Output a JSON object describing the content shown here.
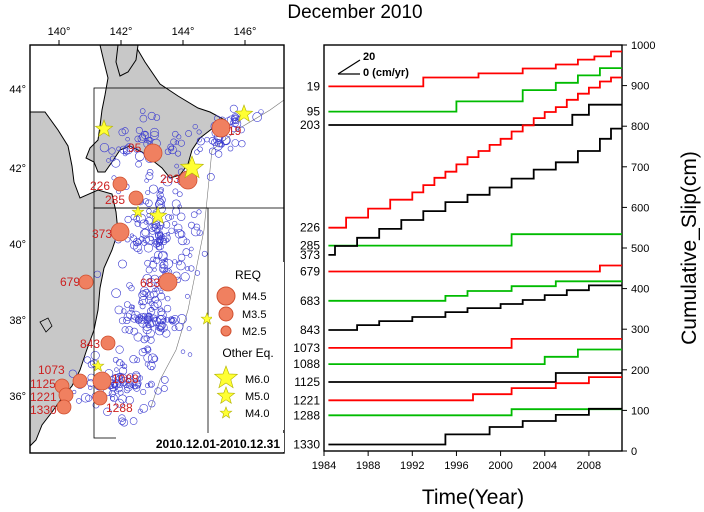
{
  "title": "December 2010",
  "map": {
    "lon_ticks": [
      "140°",
      "142°",
      "144°",
      "146°"
    ],
    "lat_ticks": [
      "44°",
      "42°",
      "40°",
      "38°",
      "36°"
    ],
    "date_range": "2010.12.01-2010.12.31",
    "legend": {
      "req_title": "REQ",
      "req_items": [
        "M4.5",
        "M3.5",
        "M2.5"
      ],
      "other_title": "Other Eq.",
      "other_items": [
        "M6.0",
        "M5.0",
        "M4.0"
      ]
    },
    "req_events": [
      {
        "id": "19",
        "size": "M4.5"
      },
      {
        "id": "95",
        "size": "M4.5"
      },
      {
        "id": "203",
        "size": "M4.5"
      },
      {
        "id": "226",
        "size": "M3.5"
      },
      {
        "id": "285",
        "size": "M3.5"
      },
      {
        "id": "373",
        "size": "M4.5"
      },
      {
        "id": "679",
        "size": "M3.5"
      },
      {
        "id": "683",
        "size": "M4.5"
      },
      {
        "id": "843",
        "size": "M3.5"
      },
      {
        "id": "1073",
        "size": "M3.5"
      },
      {
        "id": "1088",
        "size": "M4.5"
      },
      {
        "id": "1125",
        "size": "M3.5"
      },
      {
        "id": "1221",
        "size": "M3.5"
      },
      {
        "id": "1288",
        "size": "M3.5"
      },
      {
        "id": "1330",
        "size": "M3.5"
      }
    ],
    "other_eq_sizes": [
      "M5.0",
      "M5.0",
      "M6.0",
      "M4.0",
      "M5.0",
      "M4.0",
      "M4.0"
    ],
    "colors": {
      "land": "#c8c8c8",
      "req_fill": "#f08060",
      "req_stroke": "#d05030",
      "other_eq": "#ffff33",
      "seismicity": "#3a3ad0",
      "labels": "#cc2020"
    }
  },
  "chart_data": {
    "type": "line",
    "title": "December 2010",
    "xlabel": "Time(Year)",
    "ylabel": "Cumulative_Slip(cm)",
    "xlim": [
      1984,
      2011
    ],
    "ylim": [
      0,
      1000
    ],
    "xticks": [
      "1984",
      "1988",
      "1992",
      "1996",
      "2000",
      "2004",
      "2008"
    ],
    "yticks": [
      "0",
      "100",
      "200",
      "300",
      "400",
      "500",
      "600",
      "700",
      "800",
      "900",
      "1000"
    ],
    "scale_bar": {
      "value": "20",
      "unit_label": "0 (cm/yr)"
    },
    "series": [
      {
        "name": "19",
        "color": "#ff0000",
        "base": 898,
        "steps": [
          [
            1993,
            22
          ],
          [
            1998,
            10
          ],
          [
            2002,
            12
          ],
          [
            2005,
            10
          ],
          [
            2007,
            12
          ],
          [
            2008.5,
            8
          ],
          [
            2010,
            12
          ]
        ]
      },
      {
        "name": "95",
        "color": "#00bb00",
        "base": 836,
        "steps": [
          [
            1996,
            25
          ],
          [
            2002,
            28
          ],
          [
            2005,
            18
          ],
          [
            2007,
            18
          ],
          [
            2009,
            18
          ]
        ]
      },
      {
        "name": "203",
        "color": "#000000",
        "base": 803,
        "steps": [
          [
            2006.5,
            25
          ],
          [
            2008,
            25
          ]
        ]
      },
      {
        "name": "226",
        "color": "#ff0000",
        "base": 550,
        "steps": [
          [
            1986,
            25
          ],
          [
            1988,
            22
          ],
          [
            1990,
            22
          ],
          [
            1992,
            18
          ],
          [
            1993,
            18
          ],
          [
            1994,
            18
          ],
          [
            1995,
            15
          ],
          [
            1996,
            18
          ],
          [
            1997,
            18
          ],
          [
            1998,
            15
          ],
          [
            1999,
            15
          ],
          [
            2000,
            15
          ],
          [
            2001,
            18
          ],
          [
            2002,
            15
          ],
          [
            2003,
            18
          ],
          [
            2004,
            15
          ],
          [
            2005,
            12
          ],
          [
            2006,
            18
          ],
          [
            2007,
            15
          ],
          [
            2008,
            15
          ],
          [
            2009,
            15
          ],
          [
            2010,
            10
          ]
        ]
      },
      {
        "name": "285",
        "color": "#00bb00",
        "base": 506,
        "steps": [
          [
            2001,
            28
          ]
        ]
      },
      {
        "name": "373",
        "color": "#000000",
        "base": 483,
        "steps": [
          [
            1985,
            22
          ],
          [
            1987,
            20
          ],
          [
            1989,
            22
          ],
          [
            1991,
            22
          ],
          [
            1993,
            22
          ],
          [
            1995,
            22
          ],
          [
            1997,
            18
          ],
          [
            1999,
            18
          ],
          [
            2001,
            22
          ],
          [
            2003,
            22
          ],
          [
            2005,
            18
          ],
          [
            2007,
            28
          ],
          [
            2009,
            30
          ],
          [
            2010,
            25
          ]
        ]
      },
      {
        "name": "679",
        "color": "#ff0000",
        "base": 442,
        "steps": [
          [
            2009,
            15
          ]
        ]
      },
      {
        "name": "683",
        "color": "#00bb00",
        "base": 370,
        "steps": [
          [
            1995,
            12
          ],
          [
            1997,
            12
          ],
          [
            2001,
            12
          ],
          [
            2005,
            12
          ]
        ]
      },
      {
        "name": "843",
        "color": "#000000",
        "base": 298,
        "steps": [
          [
            1987,
            12
          ],
          [
            1989,
            10
          ],
          [
            1992,
            10
          ],
          [
            1995,
            12
          ],
          [
            1997,
            10
          ],
          [
            2000,
            10
          ],
          [
            2002,
            10
          ],
          [
            2004,
            12
          ],
          [
            2006,
            12
          ],
          [
            2008,
            12
          ]
        ]
      },
      {
        "name": "1073",
        "color": "#ff0000",
        "base": 254,
        "steps": [
          [
            2001,
            22
          ]
        ]
      },
      {
        "name": "1088",
        "color": "#00bb00",
        "base": 214,
        "steps": [
          [
            2004,
            18
          ],
          [
            2007,
            18
          ]
        ]
      },
      {
        "name": "1125",
        "color": "#000000",
        "base": 170,
        "steps": [
          [
            2005,
            22
          ]
        ]
      },
      {
        "name": "1221",
        "color": "#ff0000",
        "base": 125,
        "steps": [
          [
            1997.5,
            15
          ],
          [
            2001,
            15
          ],
          [
            2005,
            12
          ],
          [
            2008,
            15
          ]
        ]
      },
      {
        "name": "1288",
        "color": "#00bb00",
        "base": 88,
        "steps": [
          [
            2001,
            15
          ]
        ]
      },
      {
        "name": "1330",
        "color": "#000000",
        "base": 16,
        "steps": [
          [
            1995,
            25
          ],
          [
            1999,
            18
          ],
          [
            2002,
            15
          ],
          [
            2005,
            15
          ],
          [
            2008,
            15
          ]
        ]
      }
    ]
  }
}
